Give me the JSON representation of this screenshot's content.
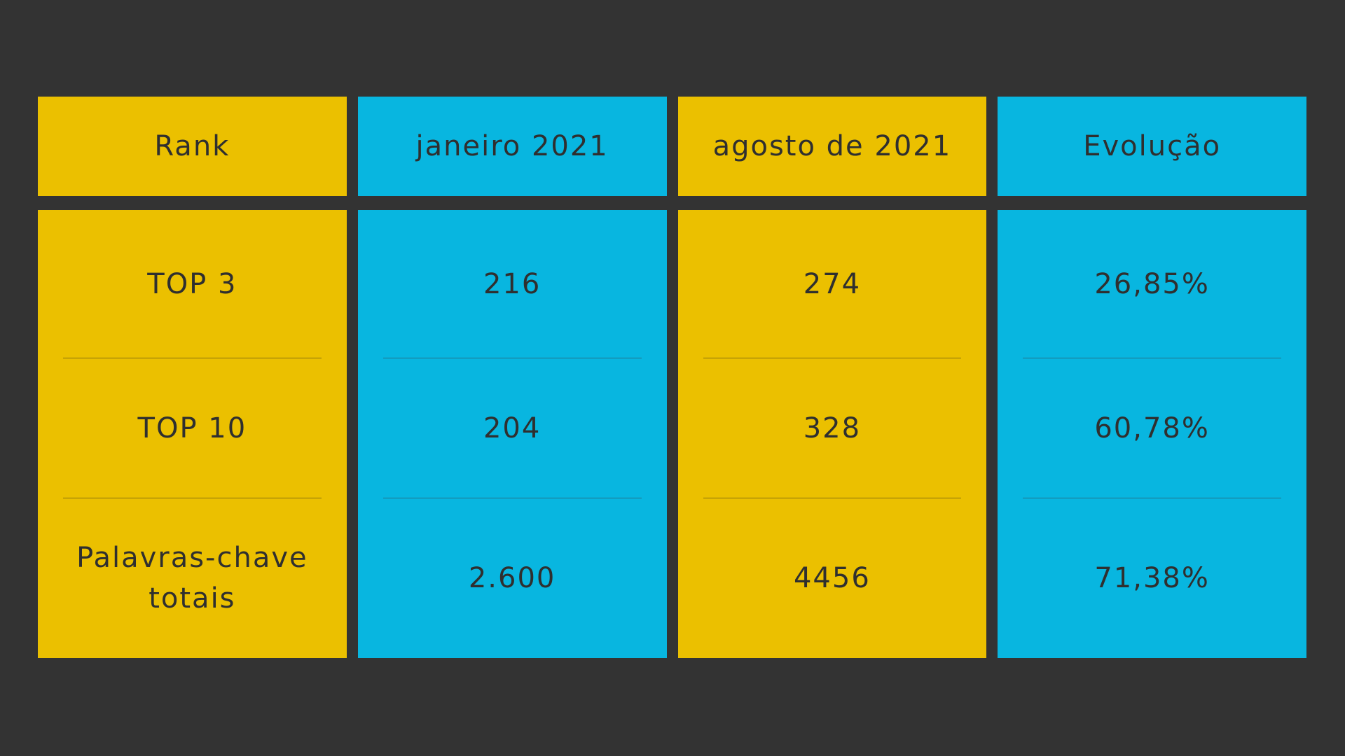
{
  "table": {
    "header": [
      "Rank",
      "janeiro 2021",
      "agosto de 2021",
      "Evolução"
    ],
    "rows": [
      [
        "TOP 3",
        "216",
        "274",
        "26,85%"
      ],
      [
        "TOP 10",
        "204",
        "328",
        "60,78%"
      ],
      [
        "Palavras-chave totais",
        "2.600",
        "4456",
        "71,38%"
      ]
    ]
  }
}
